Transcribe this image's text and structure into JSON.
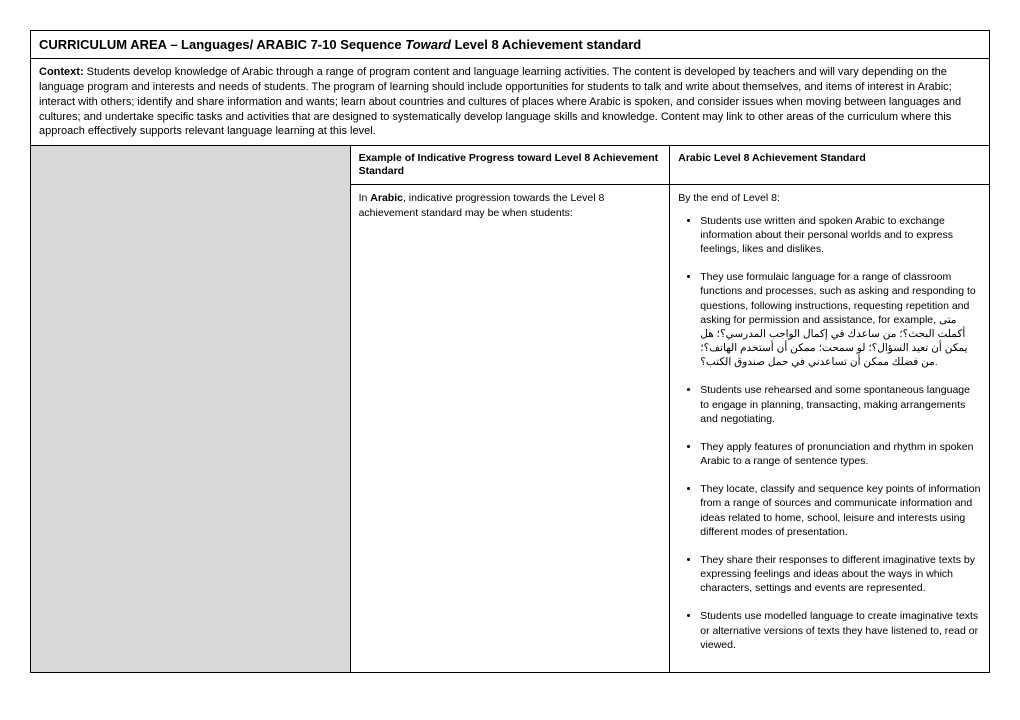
{
  "title": {
    "prefix": "CURRICULUM AREA – Languages/ ARABIC 7-10 Sequence ",
    "italic": "Toward",
    "suffix": " Level 8 Achievement standard"
  },
  "context": {
    "label": "Context:",
    "text": " Students develop knowledge of Arabic through a range of program content and language learning activities. The content is developed by teachers and will vary depending on the language program and interests and needs of students. The program of learning should include opportunities for students to talk and write about themselves, and items of interest in Arabic; interact with others; identify and share information and wants; learn about countries and cultures of places where Arabic is spoken, and consider issues when moving between languages and cultures; and undertake specific tasks and activities that are designed to systematically develop language skills and knowledge. Content may link to other areas of the curriculum where this approach effectively supports relevant language learning at this level."
  },
  "headers": {
    "mid": "Example of Indicative Progress toward Level 8 Achievement Standard",
    "right": "Arabic Level 8 Achievement Standard"
  },
  "midBody": {
    "prefix": "In ",
    "bold": "Arabic",
    "suffix": ", indicative progression towards the Level 8 achievement standard may be when students:"
  },
  "rightBody": {
    "intro": "By the end of Level 8:",
    "bullets": [
      "Students use written and spoken Arabic to exchange information about their personal worlds and to express feelings, likes and dislikes.",
      "They use formulaic language for a range of classroom functions and processes, such as asking and responding to questions, following instructions, requesting repetition and asking for permission and assistance, for example,  متى أكملت البحث؟؛ من ساعدك في إكمال الواجب المدرسي؟؛ هل يمكن أن تعيد السؤال؟؛ لو سمحت؛ ممكن أن أستخدم الهاتف؟؛ من فضلك ممكن أن تساعدني في حمل صندوق الكتب؟.",
      "Students use rehearsed and some spontaneous language to engage in planning, transacting, making arrangements and negotiating.",
      "They apply features of pronunciation and rhythm in spoken Arabic to a range of sentence types.",
      "They locate, classify and sequence key points of information from a range of sources and communicate information and ideas related to home, school, leisure and interests using different modes of presentation.",
      "They share their responses to different imaginative texts by expressing feelings and ideas about the ways in which characters, settings and events are represented.",
      "Students use modelled language to create imaginative texts or alternative versions of texts they have listened to, read or viewed."
    ]
  }
}
